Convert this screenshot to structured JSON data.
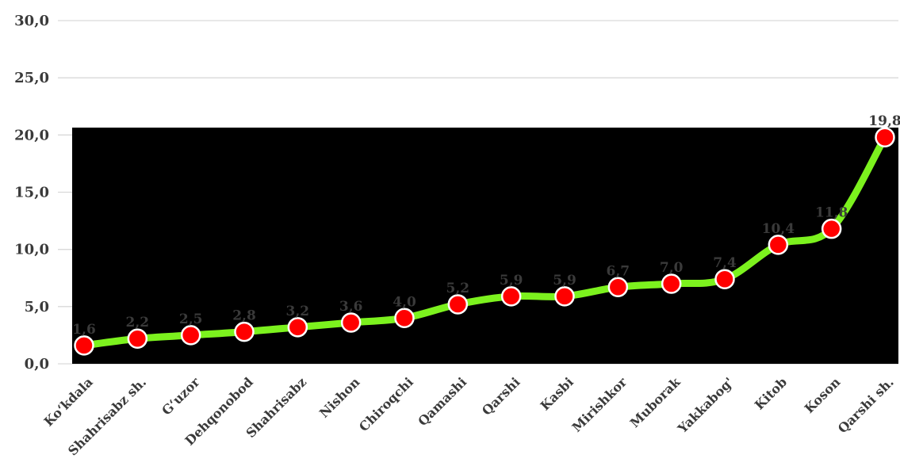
{
  "chart_data": {
    "type": "line",
    "categories": [
      "Ko‘kdala",
      "Shahrisabz sh.",
      "G‘uzor",
      "Dehqonobod",
      "Shahrisabz",
      "Nishon",
      "Chiroqchi",
      "Qamashi",
      "Qarshi",
      "Kasbi",
      "Mirishkor",
      "Muborak",
      "Yakkabog'",
      "Kitob",
      "Koson",
      "Qarshi sh."
    ],
    "values": [
      1.6,
      2.2,
      2.5,
      2.8,
      3.2,
      3.6,
      4.0,
      5.2,
      5.9,
      5.9,
      6.7,
      7.0,
      7.4,
      10.4,
      11.8,
      19.8
    ],
    "data_labels": [
      "1,6",
      "2,2",
      "2,5",
      "2,8",
      "3,2",
      "3,6",
      "4,0",
      "5,2",
      "5,9",
      "5,9",
      "6,7",
      "7,0",
      "7,4",
      "10,4",
      "11,8",
      "19,8"
    ],
    "y_ticks": [
      "0,0",
      "5,0",
      "10,0",
      "15,0",
      "20,0",
      "25,0",
      "30,0"
    ],
    "ylim": [
      0,
      30
    ],
    "grid": true,
    "legend": "none",
    "title": "",
    "xlabel": "",
    "ylabel": "",
    "colors": {
      "line": "#7cf21e",
      "marker_fill": "#ff0000",
      "marker_stroke": "#ffffff",
      "plot_background_block": "#000000",
      "grid": "#d9d9d9",
      "text": "#3a3a3a"
    }
  }
}
